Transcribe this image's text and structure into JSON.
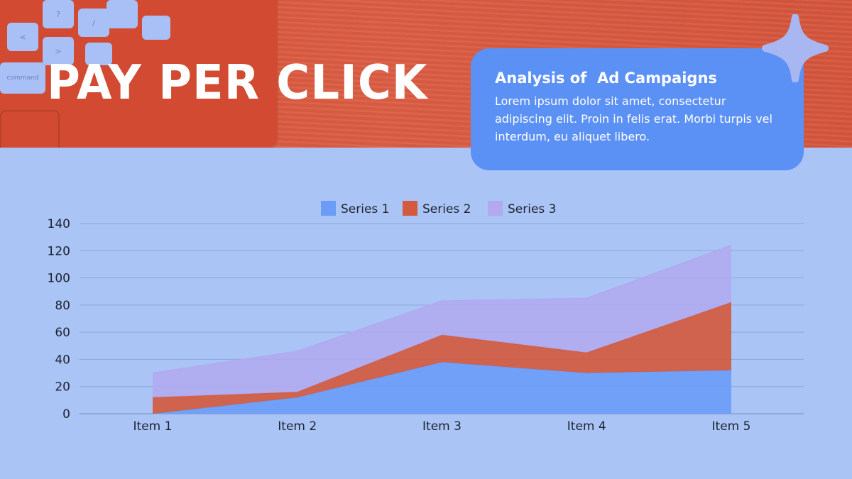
{
  "header": {
    "title": "PAY PER CLICK"
  },
  "card": {
    "heading": "Analysis of  Ad Campaigns",
    "body": "Lorem ipsum dolor sit amet, consectetur adipiscing elit. Proin in felis erat. Morbi turpis vel interdum, eu aliquet libero."
  },
  "laptop_keys": [
    "?",
    "/",
    "<",
    ">",
    "command",
    "⌘"
  ],
  "colors": {
    "banner": "#d9553a",
    "background": "#a9c4f5",
    "card": "#5b90f5",
    "series1": "#6b9cf6",
    "series2": "#d35a3e",
    "series3": "#b2a9f0"
  },
  "icons": {
    "sparkle": "four-point-star-icon"
  },
  "chart_data": {
    "type": "area",
    "stacked": true,
    "categories": [
      "Item 1",
      "Item 2",
      "Item 3",
      "Item 4",
      "Item 5"
    ],
    "series": [
      {
        "name": "Series 1",
        "values": [
          0,
          12,
          38,
          30,
          32
        ]
      },
      {
        "name": "Series 2",
        "values": [
          12,
          4,
          20,
          15,
          50
        ]
      },
      {
        "name": "Series 3",
        "values": [
          18,
          30,
          25,
          40,
          42
        ]
      }
    ],
    "yticks": [
      0,
      20,
      40,
      60,
      80,
      100,
      120,
      140
    ],
    "ylim": [
      0,
      140
    ],
    "grid": true,
    "legend": "top-center"
  }
}
